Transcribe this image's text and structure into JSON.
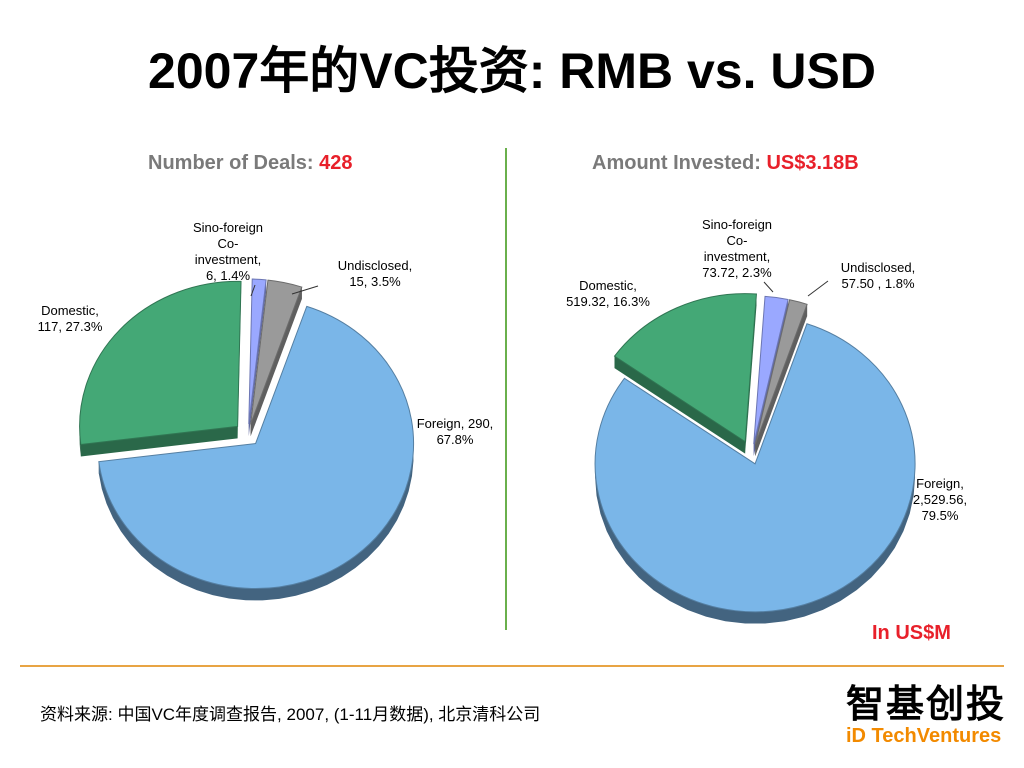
{
  "title": "2007年的VC投资: RMB vs. USD",
  "chart_data": [
    {
      "type": "pie",
      "title_prefix": "Number of Deals:",
      "title_value": "428",
      "slices": [
        {
          "name": "Foreign",
          "value": 290,
          "value_label": "290",
          "percent": 67.8,
          "color": "#7ab6e8"
        },
        {
          "name": "Domestic",
          "value": 117,
          "value_label": "117",
          "percent": 27.3,
          "color": "#44a876"
        },
        {
          "name": "Sino-foreign Co-investment",
          "value": 6,
          "value_label": "6",
          "percent": 1.4,
          "color": "#9aa8ff"
        },
        {
          "name": "Undisclosed",
          "value": 15,
          "value_label": "15",
          "percent": 3.5,
          "color": "#9a9a9a"
        }
      ],
      "labels": [
        {
          "lines": [
            "Foreign, 290,",
            "67.8%"
          ]
        },
        {
          "lines": [
            "Domestic,",
            "117, 27.3%"
          ]
        },
        {
          "lines": [
            "Sino-foreign",
            "Co-",
            "investment,",
            "6, 1.4%"
          ]
        },
        {
          "lines": [
            "Undisclosed,",
            "15, 3.5%"
          ]
        }
      ]
    },
    {
      "type": "pie",
      "title_prefix": "Amount Invested:",
      "title_value": "US$3.18B",
      "slices": [
        {
          "name": "Foreign",
          "value": 2529.56,
          "value_label": "2,529.56",
          "percent": 79.5,
          "color": "#7ab6e8"
        },
        {
          "name": "Domestic",
          "value": 519.32,
          "value_label": "519.32",
          "percent": 16.3,
          "color": "#44a876"
        },
        {
          "name": "Sino-foreign Co-investment",
          "value": 73.72,
          "value_label": "73.72",
          "percent": 2.3,
          "color": "#9aa8ff"
        },
        {
          "name": "Undisclosed",
          "value": 57.5,
          "value_label": "57.50",
          "percent": 1.8,
          "color": "#9a9a9a"
        }
      ],
      "labels": [
        {
          "lines": [
            "Foreign,",
            "2,529.56,",
            "79.5%"
          ]
        },
        {
          "lines": [
            "Domestic,",
            "519.32, 16.3%"
          ]
        },
        {
          "lines": [
            "Sino-foreign",
            "Co-",
            "investment,",
            "73.72, 2.3%"
          ]
        },
        {
          "lines": [
            "Undisclosed,",
            "57.50 , 1.8%"
          ]
        }
      ]
    }
  ],
  "units_note": "In US$M",
  "source_note": "资料来源: 中国VC年度调查报告, 2007, (1-11月数据), 北京清科公司",
  "logo": {
    "cn": "智基创投",
    "en": "iD TechVentures"
  }
}
